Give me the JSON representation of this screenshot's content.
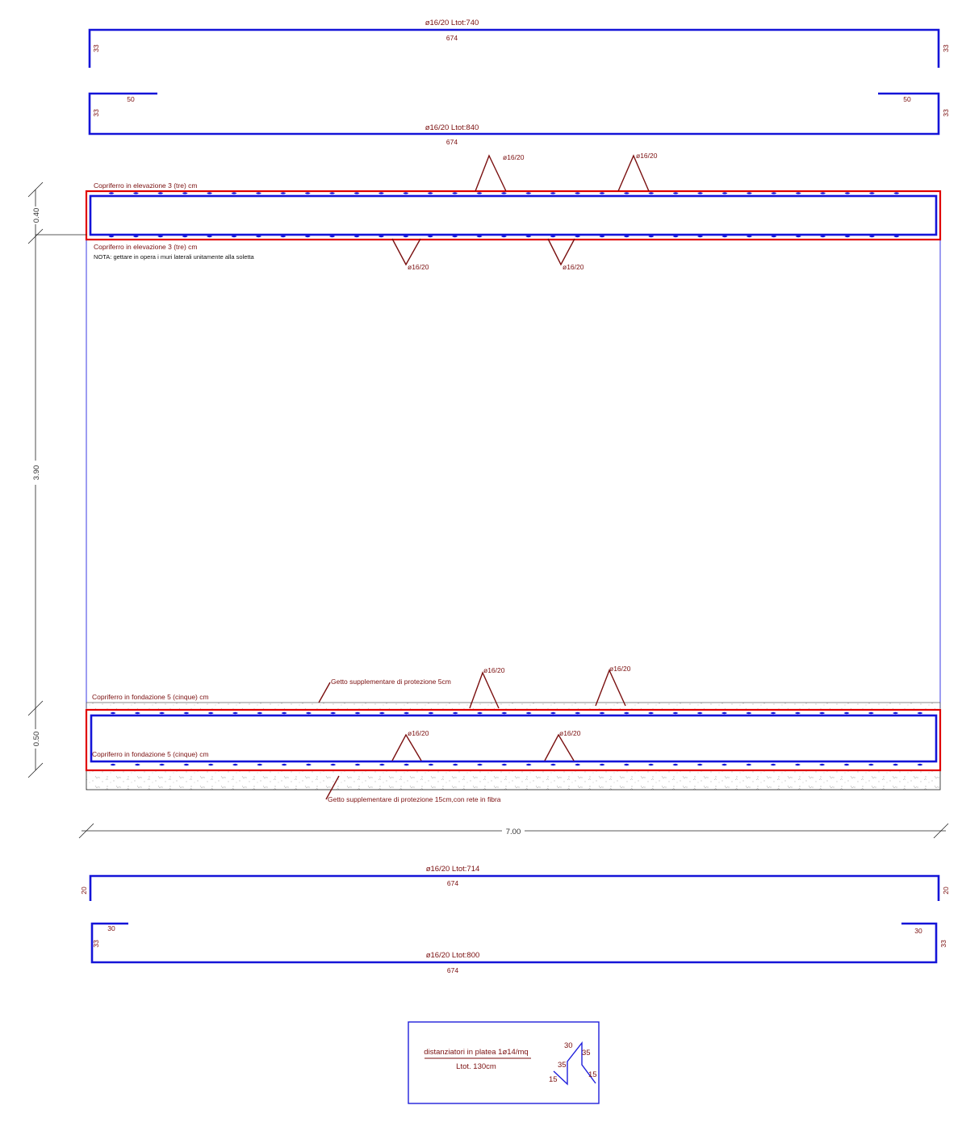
{
  "colors": {
    "rebar": "#1414d8",
    "formwork": "#e00000",
    "labels": "#7a0f0f",
    "dimensions": "#222222"
  },
  "top_bar_1": {
    "label": "ø16/20 Ltot:740",
    "length": "674",
    "left_leg": "33",
    "right_leg": "33"
  },
  "top_bar_2": {
    "label": "ø16/20 Ltot:840",
    "length": "674",
    "left_leg": "33",
    "right_leg": "33",
    "left_hook": "50",
    "right_hook": "50"
  },
  "slab": {
    "cover_top": "Copriferro in elevazione 3 (tre) cm",
    "cover_bottom": "Copriferro in elevazione 3 (tre) cm",
    "note": "NOTA: gettare in opera i muri laterali unitamente alla soletta",
    "rebar_top_1": "ø16/20",
    "rebar_top_2": "ø16/20",
    "rebar_bot_1": "ø16/20",
    "rebar_bot_2": "ø16/20"
  },
  "foundation": {
    "protection_top": "Getto supplementare di protezione 5cm",
    "cover_top": "Copriferro in fondazione 5 (cinque) cm",
    "cover_bottom": "Copriferro in fondazione 5 (cinque) cm",
    "protection_bottom": "Getto supplementare di protezione 15cm,con rete in fibra",
    "rebar_top_1": "ø16/20",
    "rebar_top_2": "ø16/20",
    "rebar_bot_1": "ø16/20",
    "rebar_bot_2": "ø16/20"
  },
  "dimensions": {
    "slab_thickness": "0.40",
    "height": "3.90",
    "foundation_thickness": "0.50",
    "width": "7.00"
  },
  "bottom_bar_1": {
    "label": "ø16/20 Ltot:714",
    "length": "674",
    "left_leg": "20",
    "right_leg": "20"
  },
  "bottom_bar_2": {
    "label": "ø16/20 Ltot:800",
    "length": "674",
    "left_leg": "33",
    "right_leg": "33",
    "left_hook": "30",
    "right_hook": "30"
  },
  "spacers": {
    "title": "distanziatori in platea 1ø14/mq",
    "total": "Ltot. 130cm",
    "seg_a": "30",
    "seg_b": "35",
    "seg_c": "35",
    "seg_d": "15",
    "seg_e": "15"
  }
}
